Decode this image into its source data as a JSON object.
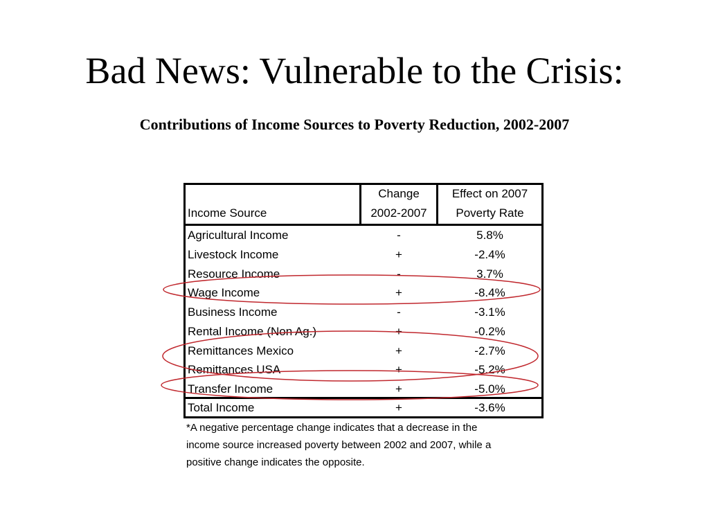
{
  "slide": {
    "title": "Bad News: Vulnerable to the Crisis:",
    "subtitle": "Contributions of Income Sources to Poverty Reduction, 2002-2007"
  },
  "table": {
    "headers": {
      "source": "Income Source",
      "change_line1": "Change",
      "change_line2": "2002-2007",
      "effect_line1": "Effect on 2007",
      "effect_line2": "Poverty Rate"
    },
    "rows": [
      {
        "source": "Agricultural Income",
        "change": "-",
        "effect": "5.8%"
      },
      {
        "source": "Livestock Income",
        "change": "+",
        "effect": "-2.4%"
      },
      {
        "source": "Resource Income",
        "change": "-",
        "effect": "3.7%"
      },
      {
        "source": "Wage Income",
        "change": "+",
        "effect": "-8.4%"
      },
      {
        "source": "Business Income",
        "change": "-",
        "effect": "-3.1%"
      },
      {
        "source": "Rental Income (Non Ag.)",
        "change": "+",
        "effect": "-0.2%"
      },
      {
        "source": "Remittances Mexico",
        "change": "+",
        "effect": "-2.7%"
      },
      {
        "source": "Remittances USA",
        "change": "+",
        "effect": "-5.2%"
      },
      {
        "source": "Transfer Income",
        "change": "+",
        "effect": "-5.0%"
      }
    ],
    "total": {
      "source": "Total Income",
      "change": "+",
      "effect": "-3.6%"
    }
  },
  "footnote": {
    "line1": "*A negative percentage change indicates that a decrease in the",
    "line2": "income source increased poverty between 2002 and 2007, while a",
    "line3": "positive change indicates the opposite."
  },
  "highlight": {
    "color": "#c0272d",
    "circled_rows": [
      "Wage Income",
      "Remittances Mexico",
      "Remittances USA",
      "Transfer Income"
    ]
  }
}
